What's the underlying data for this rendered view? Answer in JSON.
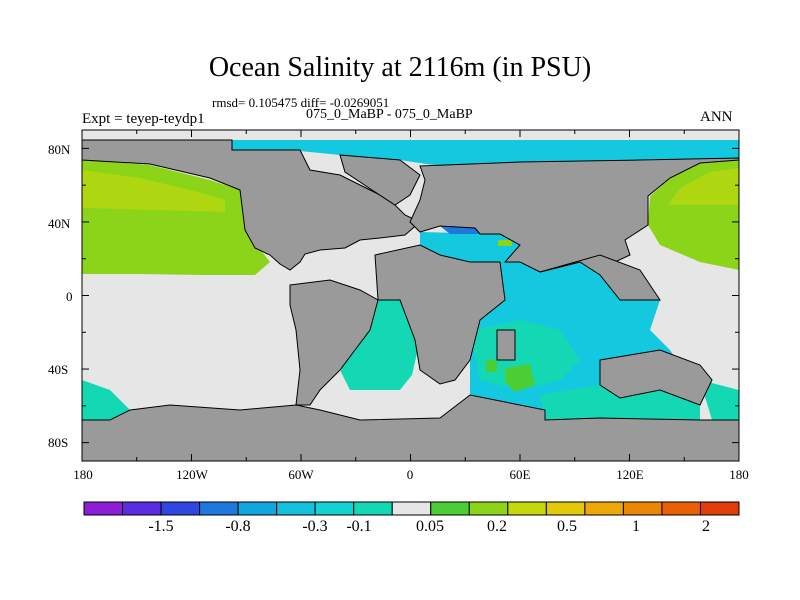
{
  "title": "Ocean Salinity at 2116m (in PSU)",
  "stats_line": "rmsd= 0.105475 diff= -0.0269051",
  "experiment_label": "Expt = teyep-teydp1",
  "cases_label": "075_0_MaBP - 075_0_MaBP",
  "season": "ANN",
  "lat_labels": [
    "80N",
    "40N",
    "0",
    "40S",
    "80S"
  ],
  "lon_labels": [
    "180",
    "120W",
    "60W",
    "0",
    "60E",
    "120E",
    "180"
  ],
  "colorbar": {
    "colors": [
      "#8c1ed8",
      "#5a2ee0",
      "#2f46e0",
      "#1f78dc",
      "#12a6dc",
      "#14c0dc",
      "#14d2d2",
      "#14d8b4",
      "#e6e6e6",
      "#4ccd36",
      "#8cd41a",
      "#c4d80e",
      "#e4c80a",
      "#eca808",
      "#ec8608",
      "#ea6008",
      "#e23c0a"
    ],
    "labels": [
      "-1.5",
      "-0.8",
      "-0.3",
      "-0.1",
      "0.05",
      "0.2",
      "0.5",
      "1",
      "2"
    ]
  },
  "map_colors": {
    "land": "#9a9a9a",
    "neutral": "#e6e6e6",
    "cyan": "#14c8e0",
    "teal": "#14d8b4",
    "blue": "#1f78dc",
    "green": "#8cd41a",
    "lime": "#4ccd36",
    "coast": "#000000"
  }
}
